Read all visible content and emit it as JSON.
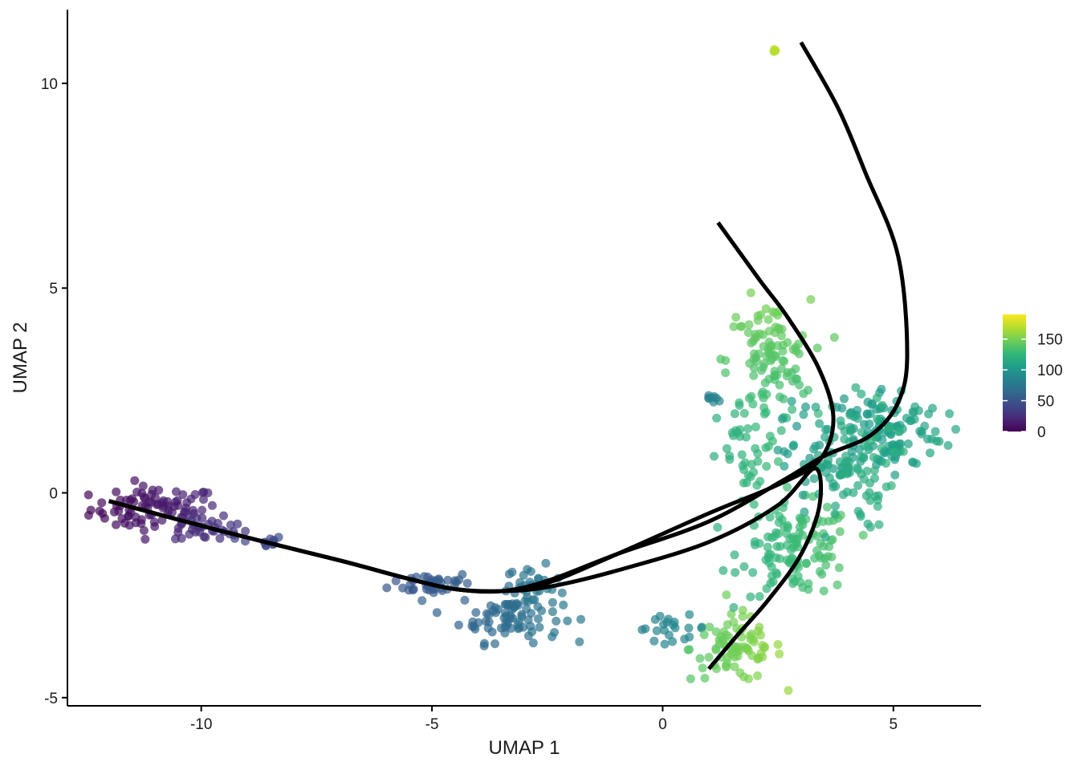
{
  "chart_data": {
    "type": "scatter",
    "title": "",
    "xlabel": "UMAP 1",
    "ylabel": "UMAP 2",
    "xlim": [
      -12.9,
      6.9
    ],
    "ylim": [
      -5.2,
      11.8
    ],
    "x_ticks": [
      -10,
      -5,
      0,
      5
    ],
    "x_tick_labels": [
      "-10",
      "-5",
      "0",
      "5"
    ],
    "y_ticks": [
      -5,
      0,
      5,
      10
    ],
    "y_tick_labels": [
      "-5",
      "0",
      "5",
      "10"
    ],
    "grid": false,
    "legend": {
      "type": "colorbar",
      "placement": "right",
      "min": 0,
      "max": 190,
      "ticks": [
        0,
        50,
        100,
        150
      ],
      "tick_labels": [
        "0",
        "50",
        "100",
        "150"
      ],
      "palette": [
        "#440154",
        "#482878",
        "#3e4989",
        "#31688e",
        "#26828e",
        "#1f9e89",
        "#35b779",
        "#6ece58",
        "#b5de2b",
        "#fde725"
      ]
    },
    "point_clusters": [
      {
        "x": -11.0,
        "y": -0.4,
        "sx": 0.7,
        "sy": 0.28,
        "n": 90,
        "v0": 2,
        "v1": 22,
        "trend": "x"
      },
      {
        "x": -9.8,
        "y": -0.9,
        "sx": 0.4,
        "sy": 0.15,
        "n": 30,
        "v0": 22,
        "v1": 30,
        "trend": "x"
      },
      {
        "x": -8.7,
        "y": -1.2,
        "sx": 0.25,
        "sy": 0.08,
        "n": 12,
        "v0": 38,
        "v1": 44,
        "trend": "x"
      },
      {
        "x": -5.0,
        "y": -2.2,
        "sx": 0.45,
        "sy": 0.14,
        "n": 40,
        "v0": 50,
        "v1": 58,
        "trend": "x"
      },
      {
        "x": -3.3,
        "y": -3.0,
        "sx": 0.55,
        "sy": 0.32,
        "n": 80,
        "v0": 60,
        "v1": 76,
        "trend": "x"
      },
      {
        "x": -2.8,
        "y": -2.3,
        "sx": 0.3,
        "sy": 0.25,
        "n": 30,
        "v0": 70,
        "v1": 80,
        "trend": "x"
      },
      {
        "x": 0.2,
        "y": -3.3,
        "sx": 0.4,
        "sy": 0.15,
        "n": 22,
        "v0": 82,
        "v1": 92,
        "trend": "x"
      },
      {
        "x": 1.6,
        "y": -3.8,
        "sx": 0.5,
        "sy": 0.4,
        "n": 80,
        "v0": 138,
        "v1": 160,
        "trend": "x"
      },
      {
        "x": 2.9,
        "y": -1.4,
        "sx": 0.6,
        "sy": 0.55,
        "n": 120,
        "v0": 120,
        "v1": 138,
        "trend": "x"
      },
      {
        "x": 2.3,
        "y": 3.2,
        "sx": 0.45,
        "sy": 0.75,
        "n": 110,
        "v0": 125,
        "v1": 150,
        "trend": "y"
      },
      {
        "x": 4.8,
        "y": 1.5,
        "sx": 0.65,
        "sy": 0.55,
        "n": 130,
        "v0": 100,
        "v1": 112,
        "trend": "x"
      },
      {
        "x": 3.8,
        "y": 0.7,
        "sx": 0.6,
        "sy": 0.8,
        "n": 110,
        "v0": 105,
        "v1": 122,
        "trend": "x"
      },
      {
        "x": 1.9,
        "y": 0.8,
        "sx": 0.35,
        "sy": 0.7,
        "n": 40,
        "v0": 118,
        "v1": 130,
        "trend": "x"
      },
      {
        "x": 1.1,
        "y": 2.3,
        "sx": 0.12,
        "sy": 0.05,
        "n": 8,
        "v0": 82,
        "v1": 86,
        "trend": "x"
      },
      {
        "x": 2.45,
        "y": 10.8,
        "sx": 0.05,
        "sy": 0.04,
        "n": 5,
        "v0": 168,
        "v1": 172,
        "trend": "x"
      }
    ],
    "trajectories": [
      {
        "x": [
          -12.0,
          -9.5,
          -7.0,
          -5.5,
          -4.5,
          -3.5,
          -2.5,
          -1.0,
          1.0,
          2.5,
          3.4,
          3.7,
          3.4,
          2.7,
          2.1,
          1.2
        ],
        "y": [
          -0.2,
          -0.95,
          -1.65,
          -2.1,
          -2.35,
          -2.4,
          -2.2,
          -1.5,
          -0.5,
          0.2,
          0.8,
          1.8,
          3.0,
          4.3,
          5.2,
          6.6
        ]
      },
      {
        "x": [
          -12.0,
          -9.5,
          -7.0,
          -5.5,
          -4.5,
          -3.5,
          -2.5,
          -1.0,
          1.0,
          2.6,
          3.5,
          4.5,
          5.1,
          5.3,
          5.1,
          4.4,
          3.8,
          3.0
        ],
        "y": [
          -0.2,
          -0.95,
          -1.65,
          -2.1,
          -2.35,
          -2.4,
          -2.15,
          -1.5,
          -0.7,
          0.3,
          0.9,
          1.4,
          2.2,
          3.4,
          5.8,
          7.8,
          9.4,
          11.0
        ]
      },
      {
        "x": [
          -12.0,
          -9.5,
          -7.0,
          -5.5,
          -4.5,
          -3.5,
          -2.5,
          -1.0,
          1.0,
          2.5,
          3.3,
          3.4,
          3.0,
          2.3,
          1.6,
          1.0
        ],
        "y": [
          -0.2,
          -0.95,
          -1.65,
          -2.1,
          -2.35,
          -2.4,
          -2.3,
          -1.9,
          -1.2,
          -0.3,
          0.6,
          -0.3,
          -1.5,
          -2.6,
          -3.5,
          -4.3
        ]
      }
    ]
  }
}
